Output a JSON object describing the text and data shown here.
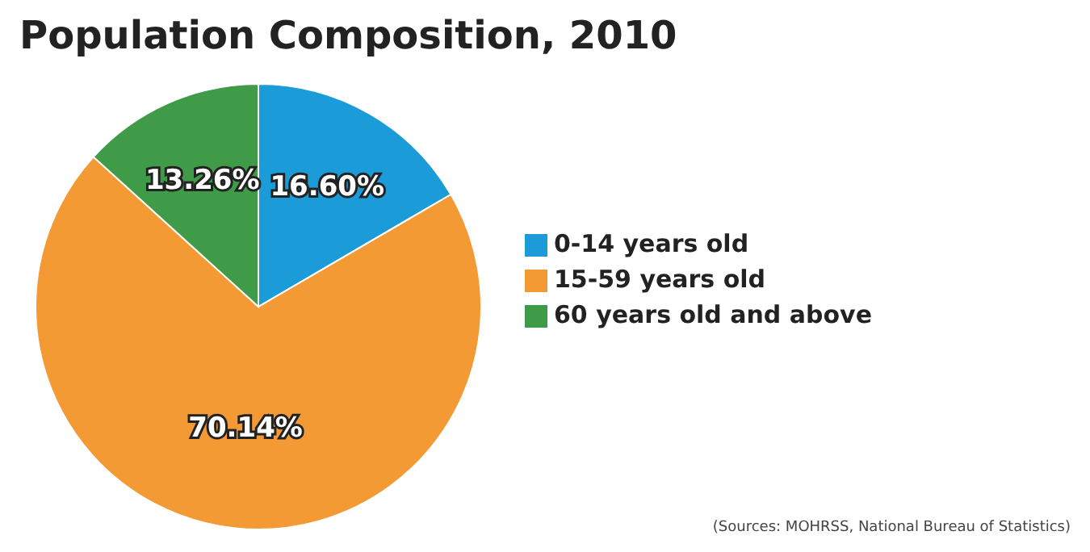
{
  "chart_data": {
    "type": "pie",
    "title": "Population Composition, 2010",
    "categories": [
      "0-14 years old",
      "15-59 years old",
      "60 years old and above"
    ],
    "values": [
      16.6,
      70.14,
      13.26
    ],
    "value_labels": [
      "16.60%",
      "70.14%",
      "13.26%"
    ],
    "colors": [
      "#1b9bd8",
      "#f39a34",
      "#3f9b48"
    ],
    "legend": "right",
    "annotations": [
      "(Sources: MOHRSS, National Bureau of Statistics)"
    ]
  }
}
